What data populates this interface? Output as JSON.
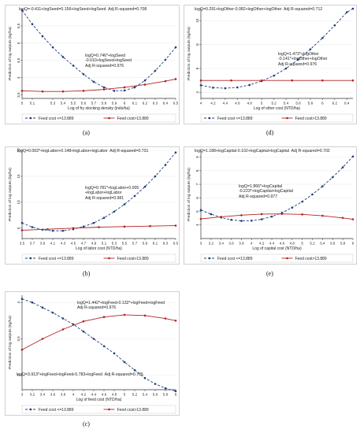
{
  "colors": {
    "series_low": "#1f3d7a",
    "series_high": "#b22222",
    "grid": "#ffffff",
    "axis": "#333333"
  },
  "chart_data": [
    {
      "id": "a",
      "type": "line",
      "panel_label": "(a)",
      "xlabel": "Log of fry stocking density (inds/ha)",
      "ylabel": "Prediction of log outputs (kg/ha)",
      "xlim": [
        5,
        6.5
      ],
      "ylim": [
        3.4,
        6.0
      ],
      "xticks": [
        5,
        5.1,
        5.3,
        5.4,
        5.5,
        5.6,
        5.7,
        5.8,
        5.9,
        6,
        6.1,
        6.2,
        6.3,
        6.4,
        6.5
      ],
      "xtick_labels": [
        "5",
        "5.1",
        "5.3",
        "5.4",
        "5.5",
        "5.6",
        "5.7",
        "5.8",
        "5.9",
        "6",
        "6.1",
        "6.2",
        "6.3",
        "6.4",
        "6.5"
      ],
      "yticks": [
        3.5,
        4,
        4.5,
        5,
        5.5
      ],
      "ytick_labels": [
        "3.5",
        "4",
        "4.5",
        "5",
        "5.5"
      ],
      "annotations": [
        {
          "lines": [
            "logQ=-0.411+logSeed=0.156+logSeed+logSeed  Adj R-squared=0.708"
          ]
        },
        {
          "lines": [
            "logQ=0.746*+logSeed",
            "-0.010+logSeed+logSeed",
            "Adj R-squared=0.976"
          ]
        }
      ],
      "series": [
        {
          "name": "Feed cost <=13.889",
          "x": [
            5,
            5.1,
            5.2,
            5.3,
            5.4,
            5.5,
            5.6,
            5.7,
            5.8,
            5.9,
            6,
            6.1,
            6.2,
            6.3,
            6.4,
            6.5
          ],
          "values": [
            5.95,
            5.55,
            5.2,
            4.88,
            4.6,
            4.35,
            4.1,
            3.88,
            3.72,
            3.62,
            3.63,
            3.72,
            3.92,
            4.2,
            4.52,
            4.88
          ]
        },
        {
          "name": "Feed cost>13.889",
          "x": [
            5,
            5.2,
            5.4,
            5.6,
            5.8,
            6,
            6.2,
            6.4,
            6.5
          ],
          "values": [
            3.62,
            3.6,
            3.6,
            3.62,
            3.66,
            3.72,
            3.8,
            3.9,
            3.96
          ]
        }
      ],
      "legend": [
        "Feed cost <=13.889",
        "Feed cost>13.889"
      ]
    },
    {
      "id": "d",
      "type": "line",
      "panel_label": "(d)",
      "xlabel": "Log of other cost (NTD/ha)",
      "ylabel": "Prediction of log outputs (kg/ha)",
      "xlim": [
        4,
        6.5
      ],
      "ylim": [
        3.5,
        11
      ],
      "xticks": [
        4,
        4.2,
        4.4,
        4.6,
        4.8,
        5,
        5.2,
        5.4,
        5.6,
        5.8,
        6,
        6.2,
        6.4
      ],
      "xtick_labels": [
        "4",
        "4.2",
        "4.4",
        "4.6",
        "4.8",
        "5",
        "5.2",
        "5.4",
        "5.6",
        "5.8",
        "6",
        "6.2",
        "6.4"
      ],
      "yticks": [
        4,
        6,
        8,
        10
      ],
      "ytick_labels": [
        "4",
        "6",
        "8",
        "10"
      ],
      "annotations": [
        {
          "lines": [
            "logQ=0.291+logOther-0.082+logOther+logOther  Adj R-squared=0.712"
          ]
        },
        {
          "lines": [
            "logQ=1.473*+logOther",
            "-0.141*+logOther+logOther",
            "Adj R-squared=0.976"
          ]
        }
      ],
      "series": [
        {
          "name": "Feed cost <=13.889",
          "x": [
            4,
            4.2,
            4.4,
            4.6,
            4.8,
            5,
            5.2,
            5.4,
            5.6,
            5.8,
            6,
            6.2,
            6.4,
            6.5
          ],
          "values": [
            4.6,
            4.4,
            4.35,
            4.42,
            4.62,
            4.95,
            5.4,
            6.0,
            6.75,
            7.6,
            8.55,
            9.6,
            10.7,
            11.0
          ]
        },
        {
          "name": "Feed cost>13.889",
          "x": [
            4,
            4.5,
            5,
            5.5,
            6,
            6.5
          ],
          "values": [
            5.0,
            5.0,
            5.0,
            5.0,
            5.0,
            5.0
          ]
        }
      ],
      "legend": [
        "Feed cost <=13.889",
        "Feed cost>13.889"
      ]
    },
    {
      "id": "b",
      "type": "line",
      "panel_label": "(b)",
      "xlabel": "Log of labor cost (NTD/ha)",
      "ylabel": "Prediction of log outputs (kg/ha)",
      "xlim": [
        3.5,
        6.5
      ],
      "ylim": [
        3,
        20
      ],
      "xticks": [
        3.5,
        3.7,
        3.9,
        4.1,
        4.3,
        4.5,
        4.7,
        4.9,
        5.1,
        5.3,
        5.5,
        5.7,
        5.9,
        6.1,
        6.3,
        6.5
      ],
      "xtick_labels": [
        "3.5",
        "3.7",
        "3.9",
        "4.1",
        "4.3",
        "4.5",
        "4.7",
        "4.9",
        "5.1",
        "5.3",
        "5.5",
        "5.7",
        "5.9",
        "6.1",
        "6.3",
        "6.5"
      ],
      "yticks": [
        5,
        10,
        15,
        20
      ],
      "ytick_labels": [
        "5",
        "10",
        "15",
        "20"
      ],
      "annotations": [
        {
          "lines": [
            "logQ=0.002*+logLabor+0.148+logLabor+logLabor  Adj R-squared=0.731"
          ]
        },
        {
          "lines": [
            "logQ=0.781*+logLabor+0.005",
            "+logLabor+logLabor",
            "Adj R-squared=0.981"
          ]
        }
      ],
      "series": [
        {
          "name": "Feed cost <=13.889",
          "x": [
            3.5,
            3.7,
            3.9,
            4.1,
            4.3,
            4.5,
            4.7,
            4.9,
            5.1,
            5.3,
            5.5,
            5.7,
            5.9,
            6.1,
            6.3,
            6.5
          ],
          "values": [
            6.0,
            5.2,
            4.7,
            4.5,
            4.5,
            4.8,
            5.3,
            6.0,
            7.0,
            8.2,
            9.6,
            11.2,
            13.0,
            15.0,
            17.2,
            19.6
          ]
        },
        {
          "name": "Feed cost>13.889",
          "x": [
            3.5,
            4,
            4.5,
            5,
            5.5,
            6,
            6.5
          ],
          "values": [
            4.6,
            4.8,
            5.0,
            5.2,
            5.3,
            5.4,
            5.5
          ]
        }
      ],
      "legend": [
        "Feed cost <=13.889",
        "Feed cost>13.889"
      ]
    },
    {
      "id": "e",
      "type": "line",
      "panel_label": "(e)",
      "xlabel": "Log of capital cost (NTD/ha)",
      "ylabel": "Prediction of log outputs (kg/ha)",
      "xlim": [
        3,
        6
      ],
      "ylim": [
        3,
        9.5
      ],
      "xticks": [
        3,
        3.2,
        3.4,
        3.6,
        3.8,
        4,
        4.2,
        4.4,
        4.6,
        4.8,
        5,
        5.2,
        5.4,
        5.6,
        5.8,
        6
      ],
      "xtick_labels": [
        "3",
        "3.2",
        "3.4",
        "3.6",
        "3.8",
        "4",
        "4.2",
        "4.4",
        "4.6",
        "4.8",
        "5",
        "5.2",
        "5.4",
        "5.6",
        "5.8",
        "6"
      ],
      "yticks": [
        4,
        5,
        6,
        7,
        8,
        9
      ],
      "ytick_labels": [
        "4",
        "5",
        "6",
        "7",
        "8",
        "9"
      ],
      "annotations": [
        {
          "lines": [
            "logQ=1.188+logCapital-0.102+logCapital+logCapital  Adj R-squared=0.702"
          ]
        },
        {
          "lines": [
            "logQ=1.866*+logCapital",
            "-0.223*+logCapital+logCapital",
            "Adj R-squared=0.977"
          ]
        }
      ],
      "series": [
        {
          "name": "Feed cost <=13.889",
          "x": [
            3,
            3.2,
            3.4,
            3.6,
            3.8,
            4,
            4.2,
            4.4,
            4.6,
            4.8,
            5,
            5.2,
            5.4,
            5.6,
            5.8,
            6
          ],
          "values": [
            5.1,
            4.8,
            4.55,
            4.38,
            4.3,
            4.32,
            4.42,
            4.62,
            4.9,
            5.28,
            5.72,
            6.25,
            6.85,
            7.52,
            8.25,
            9.05
          ]
        },
        {
          "name": "Feed cost>13.889",
          "x": [
            3,
            3.4,
            3.8,
            4.2,
            4.6,
            5,
            5.4,
            5.8,
            6
          ],
          "values": [
            4.45,
            4.6,
            4.72,
            4.8,
            4.82,
            4.78,
            4.68,
            4.52,
            4.42
          ]
        }
      ],
      "legend": [
        "Feed cost <=13.889",
        "Feed cost>13.889"
      ]
    },
    {
      "id": "c",
      "type": "line",
      "panel_label": "(c)",
      "xlabel": "Log of feed cost (NTD/ha)",
      "ylabel": "Prediction of log outputs (kg/ha)",
      "xlim": [
        3,
        6
      ],
      "ylim": [
        2.8,
        4.1
      ],
      "xticks": [
        3,
        3.2,
        3.4,
        3.6,
        3.8,
        4,
        4.2,
        4.4,
        4.6,
        4.8,
        5,
        5.2,
        5.4,
        5.6,
        5.8,
        6
      ],
      "xtick_labels": [
        "3",
        "3.2",
        "3.4",
        "3.6",
        "3.8",
        "4",
        "4.2",
        "4.4",
        "4.6",
        "4.8",
        "5",
        "5.2",
        "5.4",
        "5.6",
        "5.8",
        "6"
      ],
      "yticks": [
        3,
        3.5,
        4
      ],
      "ytick_labels": [
        "3",
        "3.5",
        "4"
      ],
      "annotations": [
        {
          "lines": [
            "logQ=1.442*+logFeed-0.132*+logFeed+logFeed",
            "Adj R-squared=0.976"
          ]
        },
        {
          "lines": [
            "logQ=3.913*+logFeed+logFeed-0.783+logFeed  Adj R-squared=0.705"
          ]
        }
      ],
      "series": [
        {
          "name": "Feed cost <=13.889",
          "x": [
            3,
            3.2,
            3.4,
            3.6,
            3.8,
            4,
            4.2,
            4.4,
            4.6,
            4.8,
            5,
            5.2,
            5.4,
            5.6,
            5.8,
            6
          ],
          "values": [
            4.05,
            4.0,
            3.93,
            3.86,
            3.78,
            3.7,
            3.6,
            3.5,
            3.4,
            3.3,
            3.18,
            3.07,
            2.96,
            2.88,
            2.82,
            2.78
          ]
        },
        {
          "name": "Feed cost>13.889",
          "x": [
            3,
            3.4,
            3.8,
            4.2,
            4.6,
            5,
            5.4,
            5.8,
            6
          ],
          "values": [
            3.35,
            3.5,
            3.63,
            3.74,
            3.8,
            3.83,
            3.82,
            3.78,
            3.75
          ]
        }
      ],
      "legend": [
        "Feed cost <=13.889",
        "Feed cost>13.889"
      ]
    }
  ]
}
